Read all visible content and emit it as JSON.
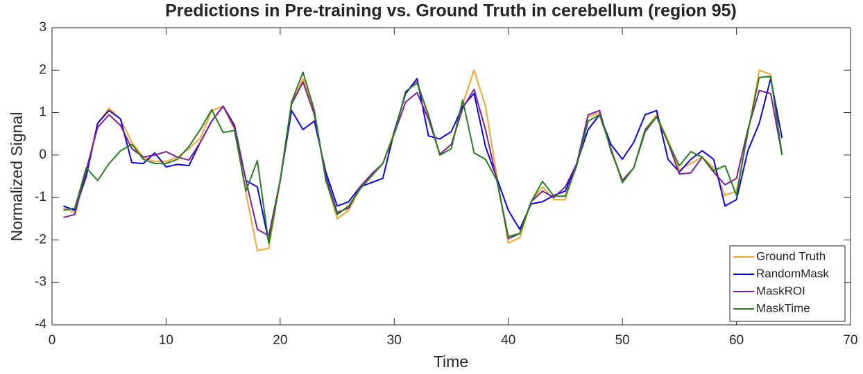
{
  "chart_data": {
    "type": "line",
    "title": "Predictions in Pre-training vs. Ground Truth in cerebellum (region 95)",
    "xlabel": "Time",
    "ylabel": "Normalized Signal",
    "x": [
      1,
      2,
      3,
      4,
      5,
      6,
      7,
      8,
      9,
      10,
      11,
      12,
      13,
      14,
      15,
      16,
      17,
      18,
      19,
      20,
      21,
      22,
      23,
      24,
      25,
      26,
      27,
      28,
      29,
      30,
      31,
      32,
      33,
      34,
      35,
      36,
      37,
      38,
      39,
      40,
      41,
      42,
      43,
      44,
      45,
      46,
      47,
      48,
      49,
      50,
      51,
      52,
      53,
      54,
      55,
      56,
      57,
      58,
      59,
      60,
      61,
      62,
      63,
      64
    ],
    "series": [
      {
        "name": "Ground Truth",
        "color": "#f4a52a",
        "values": [
          -1.25,
          -1.35,
          -0.4,
          0.75,
          1.1,
          0.85,
          0.3,
          -0.05,
          -0.15,
          -0.15,
          -0.05,
          0.15,
          0.4,
          1.05,
          1.15,
          0.6,
          -0.9,
          -2.25,
          -2.2,
          -0.6,
          1.2,
          1.8,
          1.0,
          -0.55,
          -1.5,
          -1.3,
          -0.8,
          -0.45,
          -0.2,
          0.55,
          1.45,
          1.75,
          0.9,
          0.0,
          0.15,
          1.2,
          2.0,
          1.15,
          -0.5,
          -2.07,
          -1.95,
          -1.1,
          -0.75,
          -1.05,
          -1.05,
          -0.2,
          0.9,
          1.0,
          0.15,
          -0.6,
          -0.3,
          0.6,
          0.95,
          0.35,
          -0.35,
          -0.2,
          -0.05,
          -0.3,
          -0.95,
          -0.85,
          0.5,
          2.0,
          1.9,
          0.0
        ]
      },
      {
        "name": "RandomMask",
        "color": "#0a00f0",
        "values": [
          -1.2,
          -1.3,
          -0.5,
          0.75,
          1.05,
          0.85,
          -0.18,
          -0.2,
          0.05,
          -0.28,
          -0.22,
          -0.25,
          0.3,
          0.8,
          1.15,
          0.7,
          -0.6,
          -0.75,
          -2.05,
          -0.6,
          1.05,
          0.6,
          0.8,
          -0.4,
          -1.2,
          -1.1,
          -0.75,
          -0.65,
          -0.55,
          0.55,
          1.45,
          1.8,
          0.45,
          0.38,
          0.55,
          1.15,
          1.45,
          0.2,
          -0.55,
          -1.3,
          -1.75,
          -1.15,
          -1.1,
          -0.95,
          -0.85,
          -0.2,
          0.6,
          0.95,
          0.25,
          -0.1,
          0.3,
          0.95,
          1.05,
          -0.1,
          -0.4,
          -0.1,
          0.1,
          -0.1,
          -1.2,
          -1.05,
          0.1,
          0.75,
          1.8,
          0.4
        ]
      },
      {
        "name": "MaskROI",
        "color": "#7e1e9c",
        "values": [
          -1.47,
          -1.4,
          -0.35,
          0.65,
          0.95,
          0.7,
          0.15,
          -0.05,
          0.0,
          0.08,
          -0.05,
          -0.12,
          0.3,
          0.8,
          1.15,
          0.65,
          -0.6,
          -1.75,
          -1.9,
          -0.6,
          1.2,
          1.72,
          0.95,
          -0.5,
          -1.35,
          -1.25,
          -0.75,
          -0.45,
          -0.2,
          0.5,
          1.25,
          1.47,
          0.85,
          0.02,
          0.25,
          1.1,
          1.55,
          0.6,
          -0.6,
          -1.97,
          -1.85,
          -1.1,
          -0.85,
          -1.0,
          -0.75,
          -0.2,
          0.95,
          1.05,
          0.1,
          -0.6,
          -0.3,
          0.55,
          0.9,
          0.3,
          -0.45,
          -0.42,
          -0.05,
          -0.4,
          -0.7,
          -0.55,
          0.6,
          1.52,
          1.45,
          0.0
        ]
      },
      {
        "name": "MaskTime",
        "color": "#267f1e",
        "values": [
          -1.3,
          -1.25,
          -0.3,
          -0.6,
          -0.2,
          0.1,
          0.25,
          -0.1,
          -0.2,
          -0.2,
          -0.1,
          0.2,
          0.6,
          1.07,
          0.53,
          0.58,
          -0.85,
          -0.13,
          -2.08,
          -0.6,
          1.25,
          1.95,
          1.05,
          -0.6,
          -1.4,
          -1.2,
          -0.8,
          -0.5,
          -0.2,
          0.5,
          1.5,
          1.7,
          0.95,
          0.0,
          0.15,
          1.3,
          0.05,
          -0.1,
          -0.6,
          -1.92,
          -1.85,
          -1.1,
          -0.62,
          -0.97,
          -0.97,
          -0.25,
          0.8,
          0.95,
          0.15,
          -0.65,
          -0.3,
          0.6,
          0.9,
          0.3,
          -0.25,
          0.08,
          -0.05,
          -0.37,
          -0.25,
          -0.95,
          0.55,
          1.83,
          1.85,
          0.0
        ]
      }
    ],
    "xlim": [
      0,
      70
    ],
    "xticks": [
      0,
      10,
      20,
      30,
      40,
      50,
      60,
      70
    ],
    "ylim": [
      -4,
      3
    ],
    "yticks": [
      -4,
      -3,
      -2,
      -1,
      0,
      1,
      2,
      3
    ],
    "grid": false,
    "legend": "lower right"
  }
}
